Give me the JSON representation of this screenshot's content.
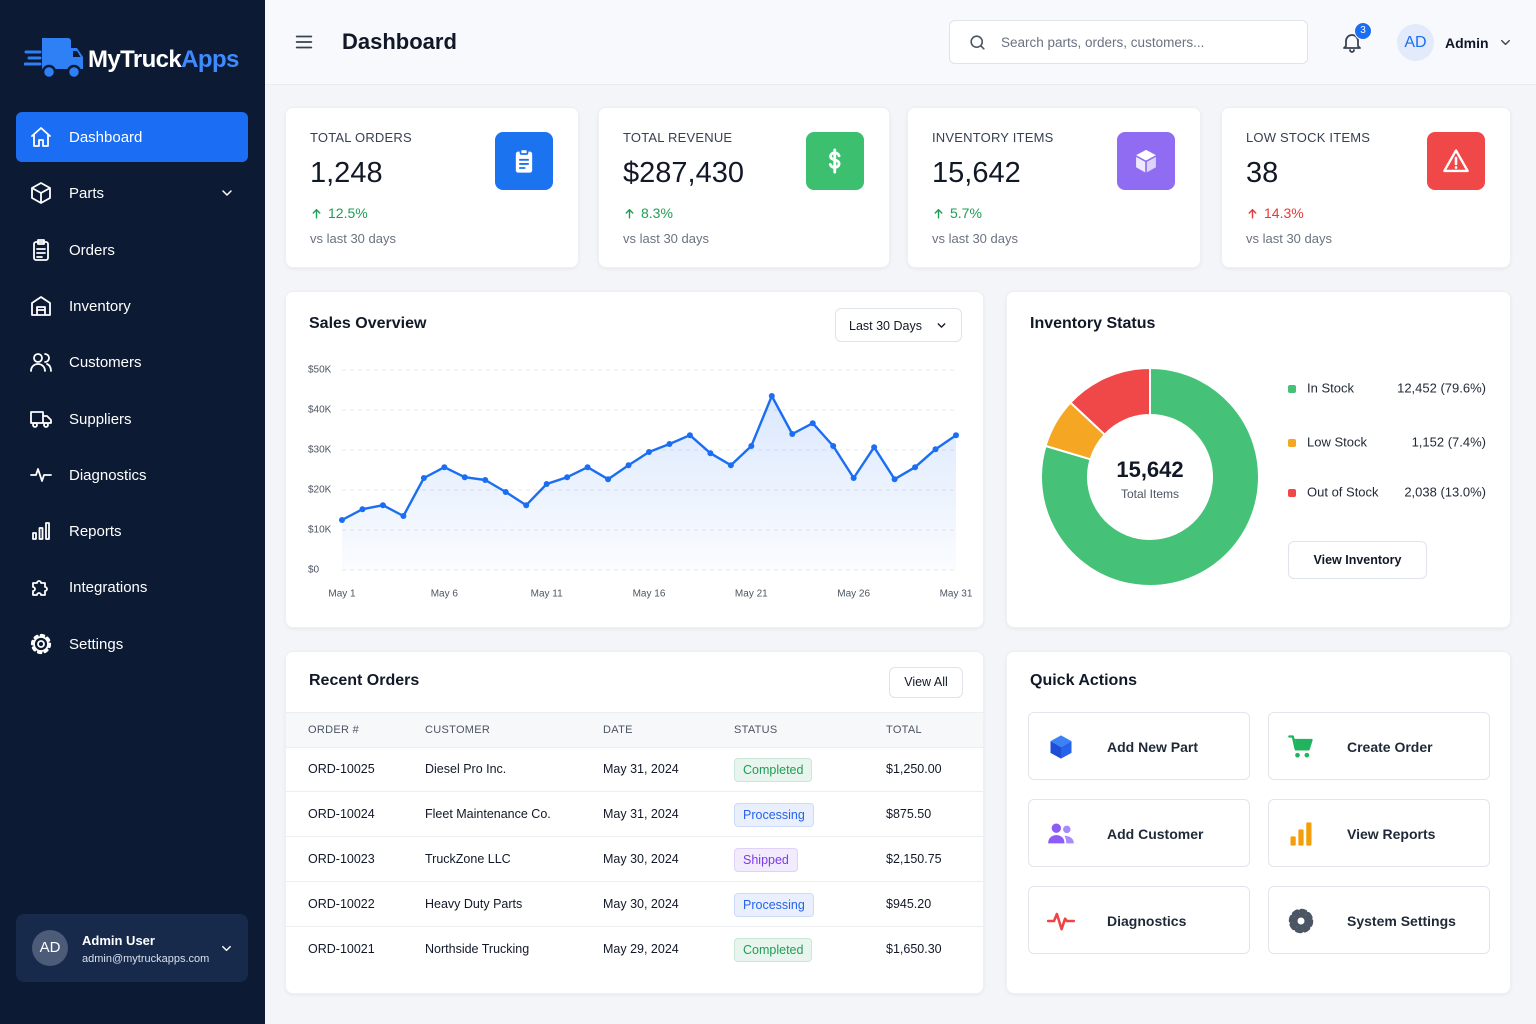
{
  "brand": {
    "name": "MyTruck",
    "accent": "Apps"
  },
  "nav": [
    {
      "label": "Dashboard",
      "active": true
    },
    {
      "label": "Parts",
      "expandable": true
    },
    {
      "label": "Orders"
    },
    {
      "label": "Inventory"
    },
    {
      "label": "Customers"
    },
    {
      "label": "Suppliers"
    },
    {
      "label": "Diagnostics"
    },
    {
      "label": "Reports"
    },
    {
      "label": "Integrations"
    },
    {
      "label": "Settings"
    }
  ],
  "user": {
    "initials": "AD",
    "name": "Admin User",
    "email": "admin@mytruckapps.com"
  },
  "header": {
    "title": "Dashboard",
    "search_placeholder": "Search parts, orders, customers...",
    "notifications": 3,
    "initials": "AD",
    "name": "Admin"
  },
  "stats": [
    {
      "label": "TOTAL ORDERS",
      "value": "1,248",
      "change": "12.5%",
      "period": "vs last 30 days",
      "color": "#1b73f0",
      "change_color": "#1f9d55"
    },
    {
      "label": "TOTAL REVENUE",
      "value": "$287,430",
      "change": "8.3%",
      "period": "vs last 30 days",
      "color": "#3cbf6e",
      "change_color": "#1f9d55"
    },
    {
      "label": "INVENTORY ITEMS",
      "value": "15,642",
      "change": "5.7%",
      "period": "vs last 30 days",
      "color": "#8f6cf2",
      "change_color": "#1f9d55"
    },
    {
      "label": "LOW STOCK ITEMS",
      "value": "38",
      "change": "14.3%",
      "period": "vs last 30 days",
      "color": "#f04848",
      "change_color": "#e53935"
    }
  ],
  "chart_data": [
    {
      "type": "line",
      "title": "Sales Overview",
      "range": "Last 30 Days",
      "categories": [
        "May 1",
        null,
        null,
        null,
        null,
        "May 6",
        null,
        null,
        null,
        null,
        "May 11",
        null,
        null,
        null,
        null,
        "May 16",
        null,
        null,
        null,
        null,
        "May 21",
        null,
        null,
        null,
        null,
        "May 26",
        null,
        null,
        null,
        null,
        "May 31"
      ],
      "values": [
        12500,
        15200,
        16200,
        13500,
        23000,
        25700,
        23200,
        22500,
        19500,
        16200,
        21500,
        23200,
        25700,
        22700,
        26200,
        29500,
        31500,
        33700,
        29200,
        26200,
        31000,
        43500,
        34000,
        36700,
        31000,
        23000,
        30700,
        22700,
        25700,
        30200,
        33700
      ],
      "color": "#1b6ef3",
      "ylim": [
        0,
        50000
      ],
      "yticks": [
        {
          "value": 0,
          "label": "$0"
        },
        {
          "value": 10000,
          "label": "$10K"
        },
        {
          "value": 20000,
          "label": "$20K"
        },
        {
          "value": 30000,
          "label": "$30K"
        },
        {
          "value": 40000,
          "label": "$40K"
        },
        {
          "value": 50000,
          "label": "$50K"
        }
      ],
      "grid": true
    },
    {
      "type": "pie",
      "title": "Inventory Status",
      "total_label": "15,642",
      "total_caption": "Total Items",
      "categories": [
        "In Stock",
        "Low Stock",
        "Out of Stock"
      ],
      "values": [
        12452,
        1152,
        2038
      ],
      "value_labels": [
        "12,452 (79.6%)",
        "1,152 (7.4%)",
        "2,038 (13.0%)"
      ],
      "colors": [
        "#45c277",
        "#f5a623",
        "#f04848"
      ],
      "button": "View Inventory"
    }
  ],
  "orders": {
    "title": "Recent Orders",
    "button": "View All",
    "columns": [
      "ORDER #",
      "CUSTOMER",
      "DATE",
      "STATUS",
      "TOTAL"
    ],
    "rows": [
      {
        "order": "ORD-10025",
        "customer": "Diesel Pro Inc.",
        "date": "May 31, 2024",
        "status": "Completed",
        "status_color": "#1f9d55",
        "total": "$1,250.00"
      },
      {
        "order": "ORD-10024",
        "customer": "Fleet Maintenance Co.",
        "date": "May 31, 2024",
        "status": "Processing",
        "status_color": "#2563eb",
        "total": "$875.50"
      },
      {
        "order": "ORD-10023",
        "customer": "TruckZone LLC",
        "date": "May 30, 2024",
        "status": "Shipped",
        "status_color": "#7c3aed",
        "total": "$2,150.75"
      },
      {
        "order": "ORD-10022",
        "customer": "Heavy Duty Parts",
        "date": "May 30, 2024",
        "status": "Processing",
        "status_color": "#2563eb",
        "total": "$945.20"
      },
      {
        "order": "ORD-10021",
        "customer": "Northside Trucking",
        "date": "May 29, 2024",
        "status": "Completed",
        "status_color": "#1f9d55",
        "total": "$1,650.30"
      }
    ]
  },
  "quick_actions": {
    "title": "Quick Actions",
    "items": [
      "Add New Part",
      "Create Order",
      "Add Customer",
      "View Reports",
      "Diagnostics",
      "System Settings"
    ]
  }
}
